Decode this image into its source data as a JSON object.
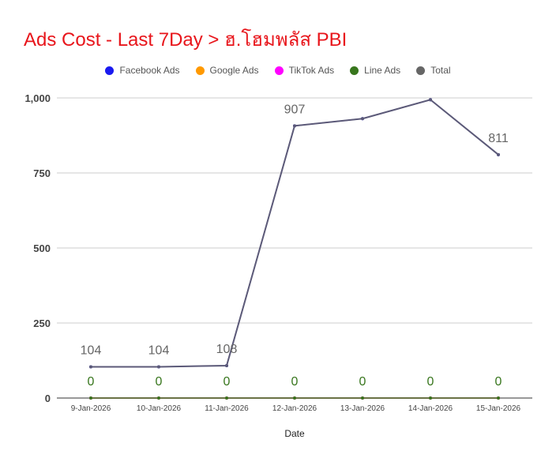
{
  "chart_data": {
    "type": "line",
    "title": "Ads Cost - Last 7Day > ฮ.โฮมพลัส PBI",
    "xlabel": "Date",
    "ylabel": "",
    "ylim": [
      0,
      1000
    ],
    "yticks": [
      0,
      250,
      500,
      750,
      1000
    ],
    "ytick_labels": [
      "0",
      "250",
      "500",
      "750",
      "1,000"
    ],
    "grid": true,
    "legend_position": "top-center",
    "categories": [
      "9-Jan-2026",
      "10-Jan-2026",
      "11-Jan-2026",
      "12-Jan-2026",
      "13-Jan-2026",
      "14-Jan-2026",
      "15-Jan-2026"
    ],
    "series": [
      {
        "name": "Facebook Ads",
        "color": "#1a1af0",
        "values": [
          104,
          104,
          108,
          907,
          931,
          994,
          811
        ],
        "labels": [
          "",
          "",
          "",
          "",
          "",
          "",
          ""
        ]
      },
      {
        "name": "Google Ads",
        "color": "#ff9900",
        "values": [
          0,
          0,
          0,
          0,
          0,
          0,
          0
        ],
        "labels": [
          "",
          "",
          "",
          "",
          "",
          "",
          ""
        ]
      },
      {
        "name": "TikTok Ads",
        "color": "#ff00ff",
        "values": [
          0,
          0,
          0,
          0,
          0,
          0,
          0
        ],
        "labels": [
          "",
          "",
          "",
          "",
          "",
          "",
          ""
        ]
      },
      {
        "name": "Line Ads",
        "color": "#38761d",
        "values": [
          0,
          0,
          0,
          0,
          0,
          0,
          0
        ],
        "labels": [
          "0",
          "0",
          "0",
          "0",
          "0",
          "0",
          "0"
        ]
      },
      {
        "name": "Total",
        "color": "#666666",
        "values": [
          104,
          104,
          108,
          907,
          931,
          994,
          811
        ],
        "labels": [
          "104",
          "104",
          "108",
          "907",
          "",
          "",
          "811"
        ]
      }
    ]
  }
}
